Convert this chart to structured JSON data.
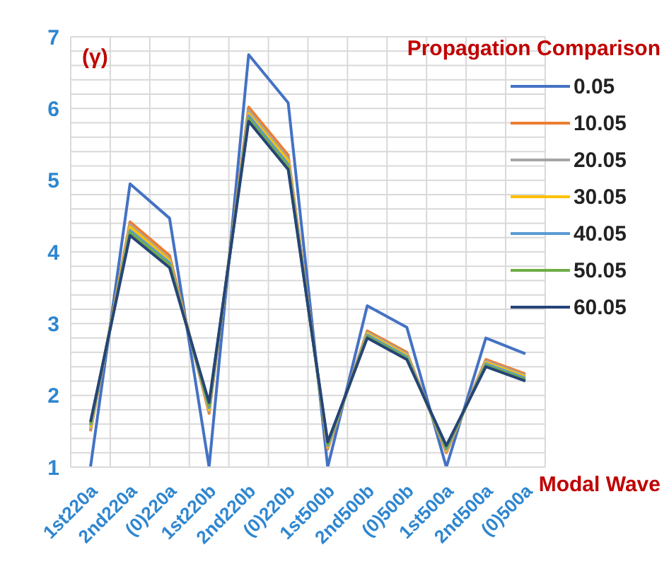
{
  "chart_data": {
    "type": "line",
    "title": "Propagation Comparison",
    "ylabel": "(γ)",
    "xlabel": "Modal Wave",
    "categories": [
      "1st220a",
      "2nd220a",
      "(0)220a",
      "1st220b",
      "2nd220b",
      "(0)220b",
      "1st500b",
      "2nd500b",
      "(0)500b",
      "1st500a",
      "2nd500a",
      "(0)500a"
    ],
    "series": [
      {
        "name": "0.05",
        "color": "#4472c4",
        "values": [
          1.0,
          4.95,
          4.47,
          1.0,
          6.75,
          6.08,
          1.0,
          3.25,
          2.95,
          1.0,
          2.8,
          2.58
        ]
      },
      {
        "name": "10.05",
        "color": "#ed7d31",
        "values": [
          1.5,
          4.42,
          3.95,
          1.75,
          6.02,
          5.35,
          1.25,
          2.9,
          2.6,
          1.2,
          2.5,
          2.3
        ]
      },
      {
        "name": "20.05",
        "color": "#a5a5a5",
        "values": [
          1.52,
          4.38,
          3.9,
          1.78,
          5.97,
          5.3,
          1.27,
          2.88,
          2.58,
          1.22,
          2.48,
          2.28
        ]
      },
      {
        "name": "30.05",
        "color": "#ffc000",
        "values": [
          1.55,
          4.35,
          3.88,
          1.8,
          5.93,
          5.27,
          1.28,
          2.86,
          2.56,
          1.23,
          2.46,
          2.26
        ]
      },
      {
        "name": "40.05",
        "color": "#5b9bd5",
        "values": [
          1.58,
          4.3,
          3.85,
          1.83,
          5.9,
          5.22,
          1.3,
          2.84,
          2.54,
          1.25,
          2.44,
          2.24
        ]
      },
      {
        "name": "50.05",
        "color": "#70ad47",
        "values": [
          1.6,
          4.27,
          3.82,
          1.86,
          5.86,
          5.19,
          1.32,
          2.82,
          2.52,
          1.27,
          2.42,
          2.22
        ]
      },
      {
        "name": "60.05",
        "color": "#264478",
        "values": [
          1.63,
          4.23,
          3.78,
          1.9,
          5.82,
          5.15,
          1.35,
          2.8,
          2.5,
          1.3,
          2.4,
          2.2
        ]
      }
    ],
    "ylim": [
      1,
      7
    ],
    "yticks": [
      1,
      2,
      3,
      4,
      5,
      6,
      7
    ],
    "grid": true,
    "legend": "right",
    "marker": "none",
    "line_style": "solid"
  }
}
